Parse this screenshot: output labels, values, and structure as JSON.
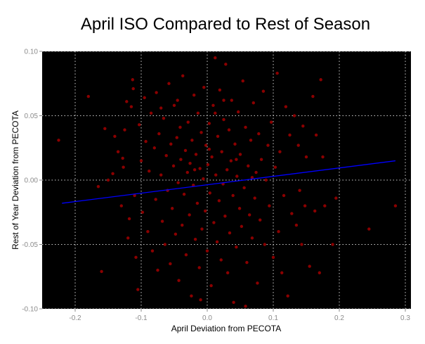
{
  "chart_data": {
    "type": "scatter",
    "title": "April ISO Compared to Rest of Season",
    "xlabel": "April Deviation from PECOTA",
    "ylabel": "Rest of Year Deviation from PECOTA",
    "xlim": [
      -0.25,
      0.3085
    ],
    "ylim": [
      -0.1,
      0.1
    ],
    "xticks": [
      -0.2,
      -0.1,
      0.0,
      0.1,
      0.2,
      0.3
    ],
    "xtick_labels": [
      "-0.2",
      "-0.1",
      "0.0",
      "0.1",
      "0.2",
      "0.3"
    ],
    "yticks": [
      0.1,
      0.05,
      0.0,
      -0.05,
      -0.1
    ],
    "ytick_labels": [
      "0.10",
      "0.05",
      "0.00",
      "-0.05",
      "-0.10"
    ],
    "grid": true,
    "colors": {
      "background": "#000000",
      "points": "#8b0000",
      "trend": "#0000ff",
      "grid": "#cccccc",
      "ticks": "#8c8c8c"
    },
    "trend_line": {
      "x": [
        -0.22,
        0.285
      ],
      "y": [
        -0.018,
        0.015
      ]
    },
    "points": [
      [
        -0.225,
        0.031
      ],
      [
        -0.18,
        0.065
      ],
      [
        -0.165,
        -0.005
      ],
      [
        -0.16,
        -0.071
      ],
      [
        -0.155,
        0.04
      ],
      [
        -0.15,
        0.0
      ],
      [
        -0.143,
        0.005
      ],
      [
        -0.14,
        0.034
      ],
      [
        -0.135,
        0.022
      ],
      [
        -0.13,
        -0.02
      ],
      [
        -0.128,
        0.017
      ],
      [
        -0.127,
        0.01
      ],
      [
        -0.125,
        0.039
      ],
      [
        -0.122,
        0.061
      ],
      [
        -0.12,
        -0.045
      ],
      [
        -0.118,
        -0.03
      ],
      [
        -0.115,
        0.057
      ],
      [
        -0.113,
        0.078
      ],
      [
        -0.112,
        0.071
      ],
      [
        -0.11,
        -0.012
      ],
      [
        -0.108,
        -0.06
      ],
      [
        -0.105,
        -0.085
      ],
      [
        -0.103,
        0.043
      ],
      [
        -0.1,
        0.015
      ],
      [
        -0.098,
        -0.025
      ],
      [
        -0.095,
        0.064
      ],
      [
        -0.093,
        0.03
      ],
      [
        -0.09,
        -0.04
      ],
      [
        -0.088,
        0.007
      ],
      [
        -0.085,
        0.052
      ],
      [
        -0.083,
        -0.055
      ],
      [
        -0.08,
        0.025
      ],
      [
        -0.078,
        -0.015
      ],
      [
        -0.077,
        0.068
      ],
      [
        -0.075,
        -0.07
      ],
      [
        -0.073,
        0.036
      ],
      [
        -0.07,
        0.004
      ],
      [
        -0.068,
        -0.032
      ],
      [
        -0.066,
        0.048
      ],
      [
        -0.064,
        -0.05
      ],
      [
        -0.062,
        0.019
      ],
      [
        -0.06,
        -0.008
      ],
      [
        -0.058,
        0.075
      ],
      [
        -0.056,
        -0.065
      ],
      [
        -0.055,
        0.028
      ],
      [
        -0.053,
        -0.022
      ],
      [
        -0.051,
        0.011
      ],
      [
        -0.05,
        0.058
      ],
      [
        -0.048,
        -0.042
      ],
      [
        -0.046,
        0.033
      ],
      [
        -0.044,
        -0.002
      ],
      [
        -0.043,
        -0.078
      ],
      [
        -0.041,
        0.041
      ],
      [
        -0.04,
        0.016
      ],
      [
        -0.038,
        -0.035
      ],
      [
        -0.037,
        0.081
      ],
      [
        -0.035,
        -0.011
      ],
      [
        -0.033,
        0.023
      ],
      [
        -0.032,
        -0.058
      ],
      [
        -0.03,
        0.006
      ],
      [
        -0.029,
        0.045
      ],
      [
        -0.027,
        -0.027
      ],
      [
        -0.026,
        0.013
      ],
      [
        -0.024,
        -0.09
      ],
      [
        -0.023,
        0.031
      ],
      [
        -0.021,
        -0.004
      ],
      [
        -0.02,
        0.066
      ],
      [
        -0.018,
        -0.046
      ],
      [
        -0.017,
        0.02
      ],
      [
        -0.015,
        -0.018
      ],
      [
        -0.014,
        0.052
      ],
      [
        -0.012,
        -0.068
      ],
      [
        -0.011,
        0.009
      ],
      [
        -0.009,
        0.037
      ],
      [
        -0.008,
        -0.038
      ],
      [
        -0.006,
        0.001
      ],
      [
        -0.005,
        0.072
      ],
      [
        -0.003,
        -0.024
      ],
      [
        -0.002,
        0.027
      ],
      [
        0.0,
        -0.055
      ],
      [
        0.001,
        0.012
      ],
      [
        0.003,
        0.044
      ],
      [
        0.004,
        -0.01
      ],
      [
        0.006,
        -0.082
      ],
      [
        0.007,
        0.018
      ],
      [
        0.009,
        0.058
      ],
      [
        0.01,
        -0.033
      ],
      [
        0.012,
        0.095
      ],
      [
        0.013,
        0.004
      ],
      [
        0.015,
        -0.048
      ],
      [
        0.016,
        0.034
      ],
      [
        0.018,
        -0.016
      ],
      [
        0.019,
        0.07
      ],
      [
        0.021,
        -0.062
      ],
      [
        0.022,
        0.022
      ],
      [
        0.024,
        -0.003
      ],
      [
        0.025,
        0.047
      ],
      [
        0.027,
        -0.028
      ],
      [
        0.028,
        0.09
      ],
      [
        0.03,
        0.008
      ],
      [
        0.031,
        -0.072
      ],
      [
        0.033,
        0.039
      ],
      [
        0.034,
        -0.041
      ],
      [
        0.036,
        0.015
      ],
      [
        0.037,
        0.062
      ],
      [
        0.039,
        -0.012
      ],
      [
        0.04,
        -0.095
      ],
      [
        0.042,
        0.028
      ],
      [
        0.044,
        -0.052
      ],
      [
        0.045,
        0.003
      ],
      [
        0.047,
        0.053
      ],
      [
        0.049,
        -0.022
      ],
      [
        0.05,
        0.02
      ],
      [
        0.052,
        -0.036
      ],
      [
        0.054,
        0.077
      ],
      [
        0.056,
        -0.006
      ],
      [
        0.058,
        0.041
      ],
      [
        0.06,
        -0.064
      ],
      [
        0.062,
        0.011
      ],
      [
        0.064,
        -0.027
      ],
      [
        0.066,
        0.031
      ],
      [
        0.068,
        -0.045
      ],
      [
        0.07,
        0.06
      ],
      [
        0.072,
        -0.014
      ],
      [
        0.074,
        0.006
      ],
      [
        0.076,
        -0.08
      ],
      [
        0.078,
        0.036
      ],
      [
        0.08,
        -0.031
      ],
      [
        0.082,
        0.016
      ],
      [
        0.085,
        0.069
      ],
      [
        0.087,
        -0.05
      ],
      [
        0.089,
        0.0
      ],
      [
        0.092,
        0.027
      ],
      [
        0.094,
        -0.02
      ],
      [
        0.097,
        0.045
      ],
      [
        0.1,
        -0.06
      ],
      [
        0.103,
        0.01
      ],
      [
        0.106,
        0.083
      ],
      [
        0.108,
        -0.04
      ],
      [
        0.11,
        0.022
      ],
      [
        0.113,
        -0.072
      ],
      [
        0.116,
        -0.012
      ],
      [
        0.119,
        0.057
      ],
      [
        0.122,
        -0.09
      ],
      [
        0.125,
        0.035
      ],
      [
        0.128,
        -0.026
      ],
      [
        0.132,
        0.05
      ],
      [
        0.135,
        -0.035
      ],
      [
        0.138,
        0.027
      ],
      [
        0.14,
        -0.008
      ],
      [
        0.143,
        -0.05
      ],
      [
        0.145,
        0.042
      ],
      [
        0.148,
        -0.02
      ],
      [
        0.15,
        0.018
      ],
      [
        0.155,
        -0.067
      ],
      [
        0.16,
        0.065
      ],
      [
        0.163,
        -0.024
      ],
      [
        0.165,
        0.035
      ],
      [
        0.17,
        -0.072
      ],
      [
        0.172,
        0.078
      ],
      [
        0.175,
        0.018
      ],
      [
        0.178,
        -0.02
      ],
      [
        0.19,
        -0.05
      ],
      [
        0.195,
        -0.014
      ],
      [
        0.245,
        -0.038
      ],
      [
        0.285,
        -0.02
      ],
      [
        -0.07,
        0.056
      ],
      [
        -0.045,
        0.062
      ],
      [
        0.012,
        0.052
      ],
      [
        0.025,
        0.062
      ],
      [
        -0.01,
        -0.093
      ],
      [
        0.058,
        -0.098
      ],
      [
        0.003,
        0.024
      ],
      [
        -0.019,
        0.008
      ],
      [
        0.044,
        0.016
      ],
      [
        0.068,
        0.002
      ]
    ]
  }
}
